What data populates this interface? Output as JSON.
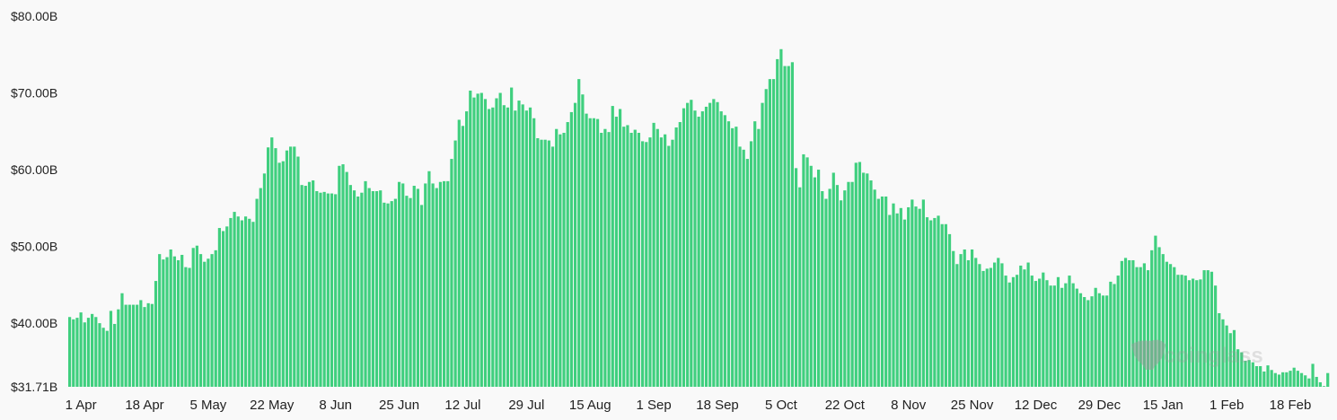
{
  "chart_data": {
    "type": "bar",
    "title": "",
    "xlabel": "",
    "ylabel": "",
    "ylim": [
      31.71,
      80.0
    ],
    "y_ticks": [
      "$80.00B",
      "$70.00B",
      "$60.00B",
      "$50.00B",
      "$40.00B",
      "$31.71B"
    ],
    "y_tick_values": [
      80,
      70,
      60,
      50,
      40,
      31.71
    ],
    "x_ticks": [
      "1 Apr",
      "18 Apr",
      "5 May",
      "22 May",
      "8 Jun",
      "25 Jun",
      "12 Jul",
      "29 Jul",
      "15 Aug",
      "1 Sep",
      "18 Sep",
      "5 Oct",
      "22 Oct",
      "8 Nov",
      "25 Nov",
      "12 Dec",
      "29 Dec",
      "15 Jan",
      "1 Feb",
      "18 Feb"
    ],
    "grid": false,
    "legend": "none",
    "bar_color": "#3fcf7e",
    "watermark": "coinglass",
    "unit": "USD billions",
    "x": [
      "29 Mar",
      "30 Mar",
      "31 Mar",
      "1 Apr",
      "2 Apr",
      "3 Apr",
      "4 Apr",
      "5 Apr",
      "6 Apr",
      "7 Apr",
      "8 Apr",
      "9 Apr",
      "10 Apr",
      "11 Apr",
      "12 Apr",
      "13 Apr",
      "14 Apr",
      "15 Apr",
      "16 Apr",
      "17 Apr",
      "18 Apr",
      "19 Apr",
      "20 Apr",
      "21 Apr",
      "22 Apr",
      "23 Apr",
      "24 Apr",
      "25 Apr",
      "26 Apr",
      "27 Apr",
      "28 Apr",
      "29 Apr",
      "30 Apr",
      "1 May",
      "2 May",
      "3 May",
      "4 May",
      "5 May",
      "6 May",
      "7 May",
      "8 May",
      "9 May",
      "10 May",
      "11 May",
      "12 May",
      "13 May",
      "14 May",
      "15 May",
      "16 May",
      "17 May",
      "18 May",
      "19 May",
      "20 May",
      "21 May",
      "22 May",
      "23 May",
      "24 May",
      "25 May",
      "26 May",
      "27 May",
      "28 May",
      "29 May",
      "30 May",
      "31 May",
      "1 Jun",
      "2 Jun",
      "3 Jun",
      "4 Jun",
      "5 Jun",
      "6 Jun",
      "7 Jun",
      "8 Jun",
      "9 Jun",
      "10 Jun",
      "11 Jun",
      "12 Jun",
      "13 Jun",
      "14 Jun",
      "15 Jun",
      "16 Jun",
      "17 Jun",
      "18 Jun",
      "19 Jun",
      "20 Jun",
      "21 Jun",
      "22 Jun",
      "23 Jun",
      "24 Jun",
      "25 Jun",
      "26 Jun",
      "27 Jun",
      "28 Jun",
      "29 Jun",
      "30 Jun",
      "1 Jul",
      "2 Jul",
      "3 Jul",
      "4 Jul",
      "5 Jul",
      "6 Jul",
      "7 Jul",
      "8 Jul",
      "9 Jul",
      "10 Jul",
      "11 Jul",
      "12 Jul",
      "13 Jul",
      "14 Jul",
      "15 Jul",
      "16 Jul",
      "17 Jul",
      "18 Jul",
      "19 Jul",
      "20 Jul",
      "21 Jul",
      "22 Jul",
      "23 Jul",
      "24 Jul",
      "25 Jul",
      "26 Jul",
      "27 Jul",
      "28 Jul",
      "29 Jul",
      "30 Jul",
      "31 Jul",
      "1 Aug",
      "2 Aug",
      "3 Aug",
      "4 Aug",
      "5 Aug",
      "6 Aug",
      "7 Aug",
      "8 Aug",
      "9 Aug",
      "10 Aug",
      "11 Aug",
      "12 Aug",
      "13 Aug",
      "14 Aug",
      "15 Aug",
      "16 Aug",
      "17 Aug",
      "18 Aug",
      "19 Aug",
      "20 Aug",
      "21 Aug",
      "22 Aug",
      "23 Aug",
      "24 Aug",
      "25 Aug",
      "26 Aug",
      "27 Aug",
      "28 Aug",
      "29 Aug",
      "30 Aug",
      "31 Aug",
      "1 Sep",
      "2 Sep",
      "3 Sep",
      "4 Sep",
      "5 Sep",
      "6 Sep",
      "7 Sep",
      "8 Sep",
      "9 Sep",
      "10 Sep",
      "11 Sep",
      "12 Sep",
      "13 Sep",
      "14 Sep",
      "15 Sep",
      "16 Sep",
      "17 Sep",
      "18 Sep",
      "19 Sep",
      "20 Sep",
      "21 Sep",
      "22 Sep",
      "23 Sep",
      "24 Sep",
      "25 Sep",
      "26 Sep",
      "27 Sep",
      "28 Sep",
      "29 Sep",
      "30 Sep",
      "1 Oct",
      "2 Oct",
      "3 Oct",
      "4 Oct",
      "5 Oct",
      "6 Oct",
      "7 Oct",
      "8 Oct",
      "9 Oct",
      "10 Oct",
      "11 Oct",
      "12 Oct",
      "13 Oct",
      "14 Oct",
      "15 Oct",
      "16 Oct",
      "17 Oct",
      "18 Oct",
      "19 Oct",
      "20 Oct",
      "21 Oct",
      "22 Oct",
      "23 Oct",
      "24 Oct",
      "25 Oct",
      "26 Oct",
      "27 Oct",
      "28 Oct",
      "29 Oct",
      "30 Oct",
      "31 Oct",
      "1 Nov",
      "2 Nov",
      "3 Nov",
      "4 Nov",
      "5 Nov",
      "6 Nov",
      "7 Nov",
      "8 Nov",
      "9 Nov",
      "10 Nov",
      "11 Nov",
      "12 Nov",
      "13 Nov",
      "14 Nov",
      "15 Nov",
      "16 Nov",
      "17 Nov",
      "18 Nov",
      "19 Nov",
      "20 Nov",
      "21 Nov",
      "22 Nov",
      "23 Nov",
      "24 Nov",
      "25 Nov",
      "26 Nov",
      "27 Nov",
      "28 Nov",
      "29 Nov",
      "30 Nov",
      "1 Dec",
      "2 Dec",
      "3 Dec",
      "4 Dec",
      "5 Dec",
      "6 Dec",
      "7 Dec",
      "8 Dec",
      "9 Dec",
      "10 Dec",
      "11 Dec",
      "12 Dec",
      "13 Dec",
      "14 Dec",
      "15 Dec",
      "16 Dec",
      "17 Dec",
      "18 Dec",
      "19 Dec",
      "20 Dec",
      "21 Dec",
      "22 Dec",
      "23 Dec",
      "24 Dec",
      "25 Dec",
      "26 Dec",
      "27 Dec",
      "28 Dec",
      "29 Dec",
      "30 Dec",
      "31 Dec",
      "1 Jan",
      "2 Jan",
      "3 Jan",
      "4 Jan",
      "5 Jan",
      "6 Jan",
      "7 Jan",
      "8 Jan",
      "9 Jan",
      "10 Jan",
      "11 Jan",
      "12 Jan",
      "13 Jan",
      "14 Jan",
      "15 Jan",
      "16 Jan",
      "17 Jan",
      "18 Jan",
      "19 Jan",
      "20 Jan",
      "21 Jan",
      "22 Jan",
      "23 Jan",
      "24 Jan",
      "25 Jan",
      "26 Jan",
      "27 Jan",
      "28 Jan",
      "29 Jan",
      "30 Jan",
      "31 Jan",
      "1 Feb",
      "2 Feb",
      "3 Feb",
      "4 Feb",
      "5 Feb",
      "6 Feb",
      "7 Feb",
      "8 Feb",
      "9 Feb",
      "10 Feb",
      "11 Feb",
      "12 Feb",
      "13 Feb",
      "14 Feb",
      "15 Feb",
      "16 Feb",
      "17 Feb",
      "18 Feb",
      "19 Feb",
      "20 Feb",
      "21 Feb",
      "22 Feb",
      "23 Feb",
      "24 Feb",
      "25 Feb",
      "26 Feb",
      "27 Feb",
      "28 Feb"
    ],
    "values": [
      40.8,
      40.5,
      40.7,
      41.4,
      40.1,
      40.7,
      41.2,
      40.8,
      40.0,
      39.4,
      39.0,
      41.6,
      39.9,
      41.8,
      43.9,
      42.4,
      42.4,
      42.4,
      42.4,
      43.0,
      42.1,
      42.6,
      42.5,
      45.5,
      49.0,
      48.3,
      48.6,
      49.6,
      48.7,
      48.2,
      48.9,
      47.3,
      47.2,
      49.8,
      50.1,
      49.0,
      48.0,
      48.4,
      49.0,
      49.5,
      52.4,
      52.0,
      52.6,
      53.7,
      54.5,
      53.9,
      53.4,
      53.9,
      53.6,
      53.2,
      56.2,
      57.6,
      59.5,
      62.9,
      64.2,
      62.8,
      60.9,
      61.1,
      62.5,
      63.0,
      63.0,
      61.7,
      58.0,
      57.9,
      58.4,
      58.6,
      57.2,
      57.0,
      57.1,
      56.9,
      56.9,
      56.8,
      60.5,
      60.7,
      59.7,
      58.0,
      57.3,
      56.5,
      57.0,
      58.5,
      57.6,
      57.2,
      57.2,
      57.3,
      55.7,
      55.6,
      55.9,
      56.2,
      58.4,
      58.2,
      56.6,
      56.3,
      57.9,
      57.5,
      55.4,
      58.2,
      59.8,
      58.2,
      57.6,
      58.4,
      58.5,
      58.5,
      61.4,
      63.8,
      66.5,
      65.7,
      67.6,
      70.3,
      69.4,
      69.9,
      70.0,
      69.2,
      67.9,
      68.1,
      69.3,
      70.0,
      68.4,
      68.1,
      70.7,
      67.7,
      69.0,
      68.5,
      67.7,
      68.1,
      66.7,
      64.1,
      63.9,
      63.9,
      63.8,
      63.0,
      65.3,
      64.6,
      64.8,
      66.2,
      67.5,
      68.7,
      71.8,
      69.8,
      67.3,
      66.7,
      66.7,
      66.6,
      64.8,
      65.3,
      64.9,
      68.3,
      66.9,
      67.9,
      65.6,
      65.8,
      64.8,
      65.2,
      64.8,
      63.7,
      63.6,
      64.2,
      66.1,
      65.3,
      64.2,
      64.6,
      63.1,
      63.9,
      65.5,
      66.2,
      68.0,
      68.7,
      69.1,
      67.7,
      66.9,
      67.6,
      68.2,
      68.7,
      69.2,
      68.8,
      67.6,
      67.1,
      66.3,
      65.4,
      65.6,
      63.0,
      62.6,
      61.4,
      63.7,
      66.3,
      65.3,
      68.7,
      70.5,
      71.8,
      71.8,
      74.4,
      75.7,
      73.5,
      73.5,
      74.0,
      60.2,
      57.7,
      62.0,
      61.6,
      60.5,
      59.0,
      60.0,
      57.2,
      56.2,
      57.5,
      59.6,
      58.0,
      56.0,
      57.3,
      58.4,
      58.4,
      60.9,
      61.0,
      59.6,
      59.5,
      58.6,
      57.4,
      56.2,
      56.5,
      56.5,
      54.1,
      55.6,
      54.3,
      55.0,
      53.5,
      55.1,
      56.1,
      55.2,
      54.9,
      56.1,
      53.8,
      53.4,
      53.7,
      54.0,
      52.9,
      52.9,
      51.6,
      49.4,
      47.7,
      49.0,
      49.6,
      48.2,
      49.6,
      48.5,
      47.7,
      46.8,
      47.1,
      47.2,
      47.9,
      48.5,
      47.8,
      46.2,
      45.3,
      46.0,
      46.3,
      47.5,
      47.0,
      47.9,
      46.2,
      45.5,
      45.8,
      46.6,
      45.6,
      44.9,
      44.9,
      46.0,
      44.6,
      45.2,
      46.2,
      45.2,
      44.5,
      43.9,
      43.4,
      43.0,
      43.5,
      44.6,
      43.9,
      43.6,
      43.6,
      45.4,
      45.1,
      46.2,
      48.1,
      48.5,
      48.2,
      48.2,
      47.3,
      47.3,
      47.8,
      46.9,
      49.5,
      51.4,
      49.9,
      49.0,
      48.0,
      47.7,
      47.3,
      46.3,
      46.3,
      46.2,
      45.6,
      45.8,
      45.6,
      45.7,
      46.9,
      46.9,
      46.7,
      44.9,
      41.3,
      40.5,
      39.7,
      38.7,
      39.1,
      36.6,
      36.2,
      35.1,
      35.2,
      34.9,
      34.4,
      34.4,
      33.7,
      34.5,
      33.9,
      33.5,
      33.3,
      33.6,
      33.6,
      33.8,
      34.2,
      33.8,
      33.5,
      33.2,
      32.8,
      34.7,
      33.0,
      32.3,
      31.8,
      33.5
    ]
  }
}
